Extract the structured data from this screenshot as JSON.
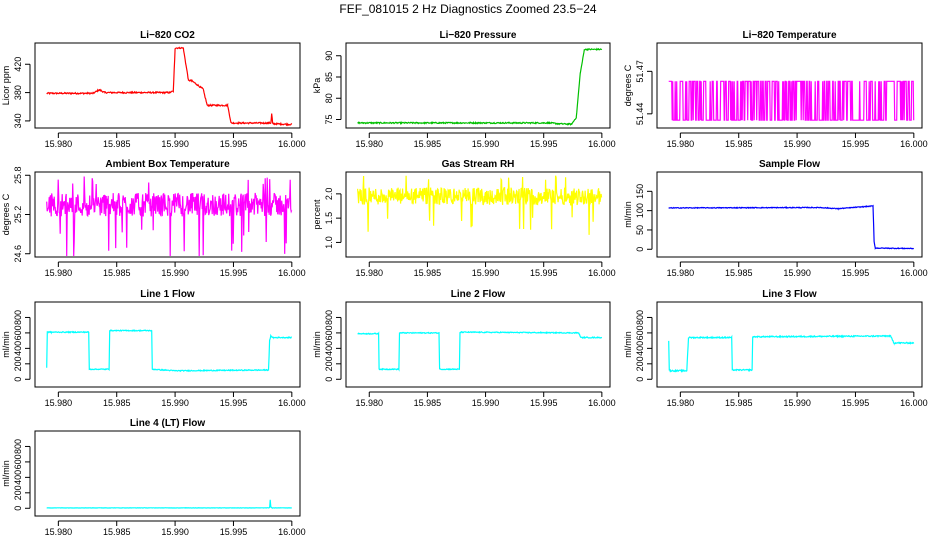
{
  "title": "FEF_081015  2 Hz Diagnostics Zoomed 23.5−24",
  "chart_data": [
    {
      "id": "co2",
      "type": "line",
      "title": "Li−820 CO2",
      "ylabel": "Licor ppm",
      "color": "#ff0000",
      "ylim": [
        330,
        450
      ],
      "xticks": [
        "15.980",
        "15.985",
        "15.990",
        "15.995",
        "16.000"
      ],
      "yticks": [
        {
          "value": 340,
          "label": "340"
        },
        {
          "value": 380,
          "label": "380"
        },
        {
          "value": 420,
          "label": "420"
        }
      ],
      "noise": 1,
      "x": [
        15.979,
        15.983,
        15.9835,
        15.984,
        15.9895,
        15.98985,
        15.99,
        15.9907,
        15.99115,
        15.9914,
        15.9924,
        15.99275,
        15.9945,
        15.9948,
        15.9982,
        15.99828,
        15.99835,
        15.99838,
        16.0
      ],
      "values": [
        379,
        379,
        384,
        380,
        380,
        382,
        443,
        443,
        397,
        397,
        385,
        362,
        362,
        337,
        337,
        350,
        337,
        336,
        335
      ]
    },
    {
      "id": "pressure",
      "type": "line",
      "title": "Li−820 Pressure",
      "ylabel": "kPa",
      "color": "#00c000",
      "ylim": [
        73,
        93
      ],
      "xticks": [
        "15.980",
        "15.985",
        "15.990",
        "15.995",
        "16.000"
      ],
      "yticks": [
        {
          "value": 75,
          "label": "75"
        },
        {
          "value": 80,
          "label": "80"
        },
        {
          "value": 85,
          "label": "85"
        },
        {
          "value": 90,
          "label": "90"
        }
      ],
      "noise": 0.15,
      "x": [
        15.979,
        15.9955,
        15.9963,
        15.9974,
        15.9978,
        15.99815,
        15.9985,
        16.0
      ],
      "values": [
        74.2,
        74.2,
        74.0,
        73.9,
        75.5,
        86.0,
        91.5,
        91.5
      ]
    },
    {
      "id": "temp",
      "type": "binary",
      "title": "Li−820 Temperature",
      "ylabel": "degrees C",
      "color": "#ff00ff",
      "ylim": [
        51.43,
        51.49
      ],
      "xticks": [
        "15.980",
        "15.985",
        "15.990",
        "15.995",
        "16.000"
      ],
      "yticks": [
        {
          "value": 51.44,
          "label": "51.44"
        },
        {
          "value": 51.47,
          "label": "51.47"
        }
      ],
      "levels": [
        51.463,
        51.4355
      ],
      "xrange": [
        15.979,
        16.0
      ]
    },
    {
      "id": "ambient",
      "type": "noise",
      "title": "Ambient Box Temperature",
      "ylabel": "degrees C",
      "color": "#ff00ff",
      "ylim": [
        24.55,
        25.85
      ],
      "xticks": [
        "15.980",
        "15.985",
        "15.990",
        "15.995",
        "16.000"
      ],
      "yticks": [
        {
          "value": 24.6,
          "label": "24.6"
        },
        {
          "value": 25.2,
          "label": "25.2"
        },
        {
          "value": 25.8,
          "label": "25.8"
        }
      ],
      "center": 25.35,
      "spread": 0.3,
      "xrange": [
        15.979,
        16.0
      ]
    },
    {
      "id": "rh",
      "type": "noise",
      "title": "Gas Stream RH",
      "ylabel": "percent",
      "color": "#ffff00",
      "ylim": [
        0.7,
        2.45
      ],
      "xticks": [
        "15.980",
        "15.985",
        "15.990",
        "15.995",
        "16.000"
      ],
      "yticks": [
        {
          "value": 1.0,
          "label": "1.0"
        },
        {
          "value": 1.5,
          "label": "1.5"
        },
        {
          "value": 2.0,
          "label": "2.0"
        }
      ],
      "center": 1.95,
      "spread": 0.3,
      "xrange": [
        15.979,
        16.0
      ]
    },
    {
      "id": "sample",
      "type": "line",
      "title": "Sample Flow",
      "ylabel": "ml/min",
      "color": "#0000ff",
      "ylim": [
        -20,
        200
      ],
      "xticks": [
        "15.980",
        "15.985",
        "15.990",
        "15.995",
        "16.000"
      ],
      "yticks": [
        {
          "value": 0,
          "label": "0"
        },
        {
          "value": 50,
          "label": "50"
        },
        {
          "value": 100,
          "label": "100"
        },
        {
          "value": 150,
          "label": "150"
        }
      ],
      "noise": 1,
      "x": [
        15.979,
        15.992,
        15.9935,
        15.9965,
        15.9966,
        15.9967,
        16.0
      ],
      "values": [
        107,
        108,
        105,
        112,
        20,
        3,
        2
      ]
    },
    {
      "id": "line1",
      "type": "line",
      "title": "Line 1 Flow",
      "ylabel": "ml/min",
      "color": "#00ffff",
      "ylim": [
        -100,
        1000
      ],
      "xticks": [
        "15.980",
        "15.985",
        "15.990",
        "15.995",
        "16.000"
      ],
      "yticks": [
        {
          "value": 0,
          "label": "0"
        },
        {
          "value": 200,
          "label": "200"
        },
        {
          "value": 400,
          "label": "400"
        },
        {
          "value": 600,
          "label": "600"
        },
        {
          "value": 800,
          "label": "800"
        }
      ],
      "noise": 6,
      "x": [
        15.979,
        15.97905,
        15.9794,
        15.9826,
        15.98265,
        15.98435,
        15.9844,
        15.988,
        15.98805,
        15.99,
        15.998,
        15.9981,
        15.9982,
        15.9984,
        16.0
      ],
      "values": [
        150,
        610,
        610,
        610,
        130,
        130,
        630,
        630,
        130,
        110,
        120,
        500,
        560,
        540,
        540
      ]
    },
    {
      "id": "line2",
      "type": "line",
      "title": "Line 2 Flow",
      "ylabel": "ml/min",
      "color": "#00ffff",
      "ylim": [
        -100,
        1000
      ],
      "xticks": [
        "15.980",
        "15.985",
        "15.990",
        "15.995",
        "16.000"
      ],
      "yticks": [
        {
          "value": 0,
          "label": "0"
        },
        {
          "value": 200,
          "label": "200"
        },
        {
          "value": 400,
          "label": "400"
        },
        {
          "value": 600,
          "label": "600"
        },
        {
          "value": 800,
          "label": "800"
        }
      ],
      "noise": 6,
      "x": [
        15.979,
        15.9808,
        15.98085,
        15.98255,
        15.9826,
        15.986,
        15.98605,
        15.98775,
        15.9878,
        15.998,
        15.9982,
        16.0
      ],
      "values": [
        590,
        590,
        130,
        130,
        600,
        600,
        130,
        130,
        610,
        600,
        540,
        540
      ]
    },
    {
      "id": "line3",
      "type": "line",
      "title": "Line 3 Flow",
      "ylabel": "ml/min",
      "color": "#00ffff",
      "ylim": [
        -100,
        1000
      ],
      "xticks": [
        "15.980",
        "15.985",
        "15.990",
        "15.995",
        "16.000"
      ],
      "yticks": [
        {
          "value": 0,
          "label": "0"
        },
        {
          "value": 200,
          "label": "200"
        },
        {
          "value": 400,
          "label": "400"
        },
        {
          "value": 600,
          "label": "600"
        },
        {
          "value": 800,
          "label": "800"
        }
      ],
      "noise": 8,
      "x": [
        15.979,
        15.97905,
        15.9792,
        15.98055,
        15.9807,
        15.9822,
        15.9844,
        15.98445,
        15.98615,
        15.9862,
        15.998,
        15.9983,
        16.0
      ],
      "values": [
        500,
        120,
        110,
        110,
        540,
        540,
        540,
        120,
        120,
        550,
        560,
        470,
        470
      ]
    },
    {
      "id": "line4",
      "type": "line",
      "title": "Line 4 (LT) Flow",
      "ylabel": "ml/min",
      "color": "#00ffff",
      "ylim": [
        -100,
        1000
      ],
      "xticks": [
        "15.980",
        "15.985",
        "15.990",
        "15.995",
        "16.000"
      ],
      "yticks": [
        {
          "value": 0,
          "label": "0"
        },
        {
          "value": 200,
          "label": "200"
        },
        {
          "value": 400,
          "label": "400"
        },
        {
          "value": 600,
          "label": "600"
        },
        {
          "value": 800,
          "label": "800"
        }
      ],
      "noise": 2,
      "x": [
        15.979,
        15.9981,
        15.99815,
        15.9982,
        15.9983,
        16.0
      ],
      "values": [
        5,
        5,
        110,
        20,
        5,
        5
      ]
    }
  ]
}
